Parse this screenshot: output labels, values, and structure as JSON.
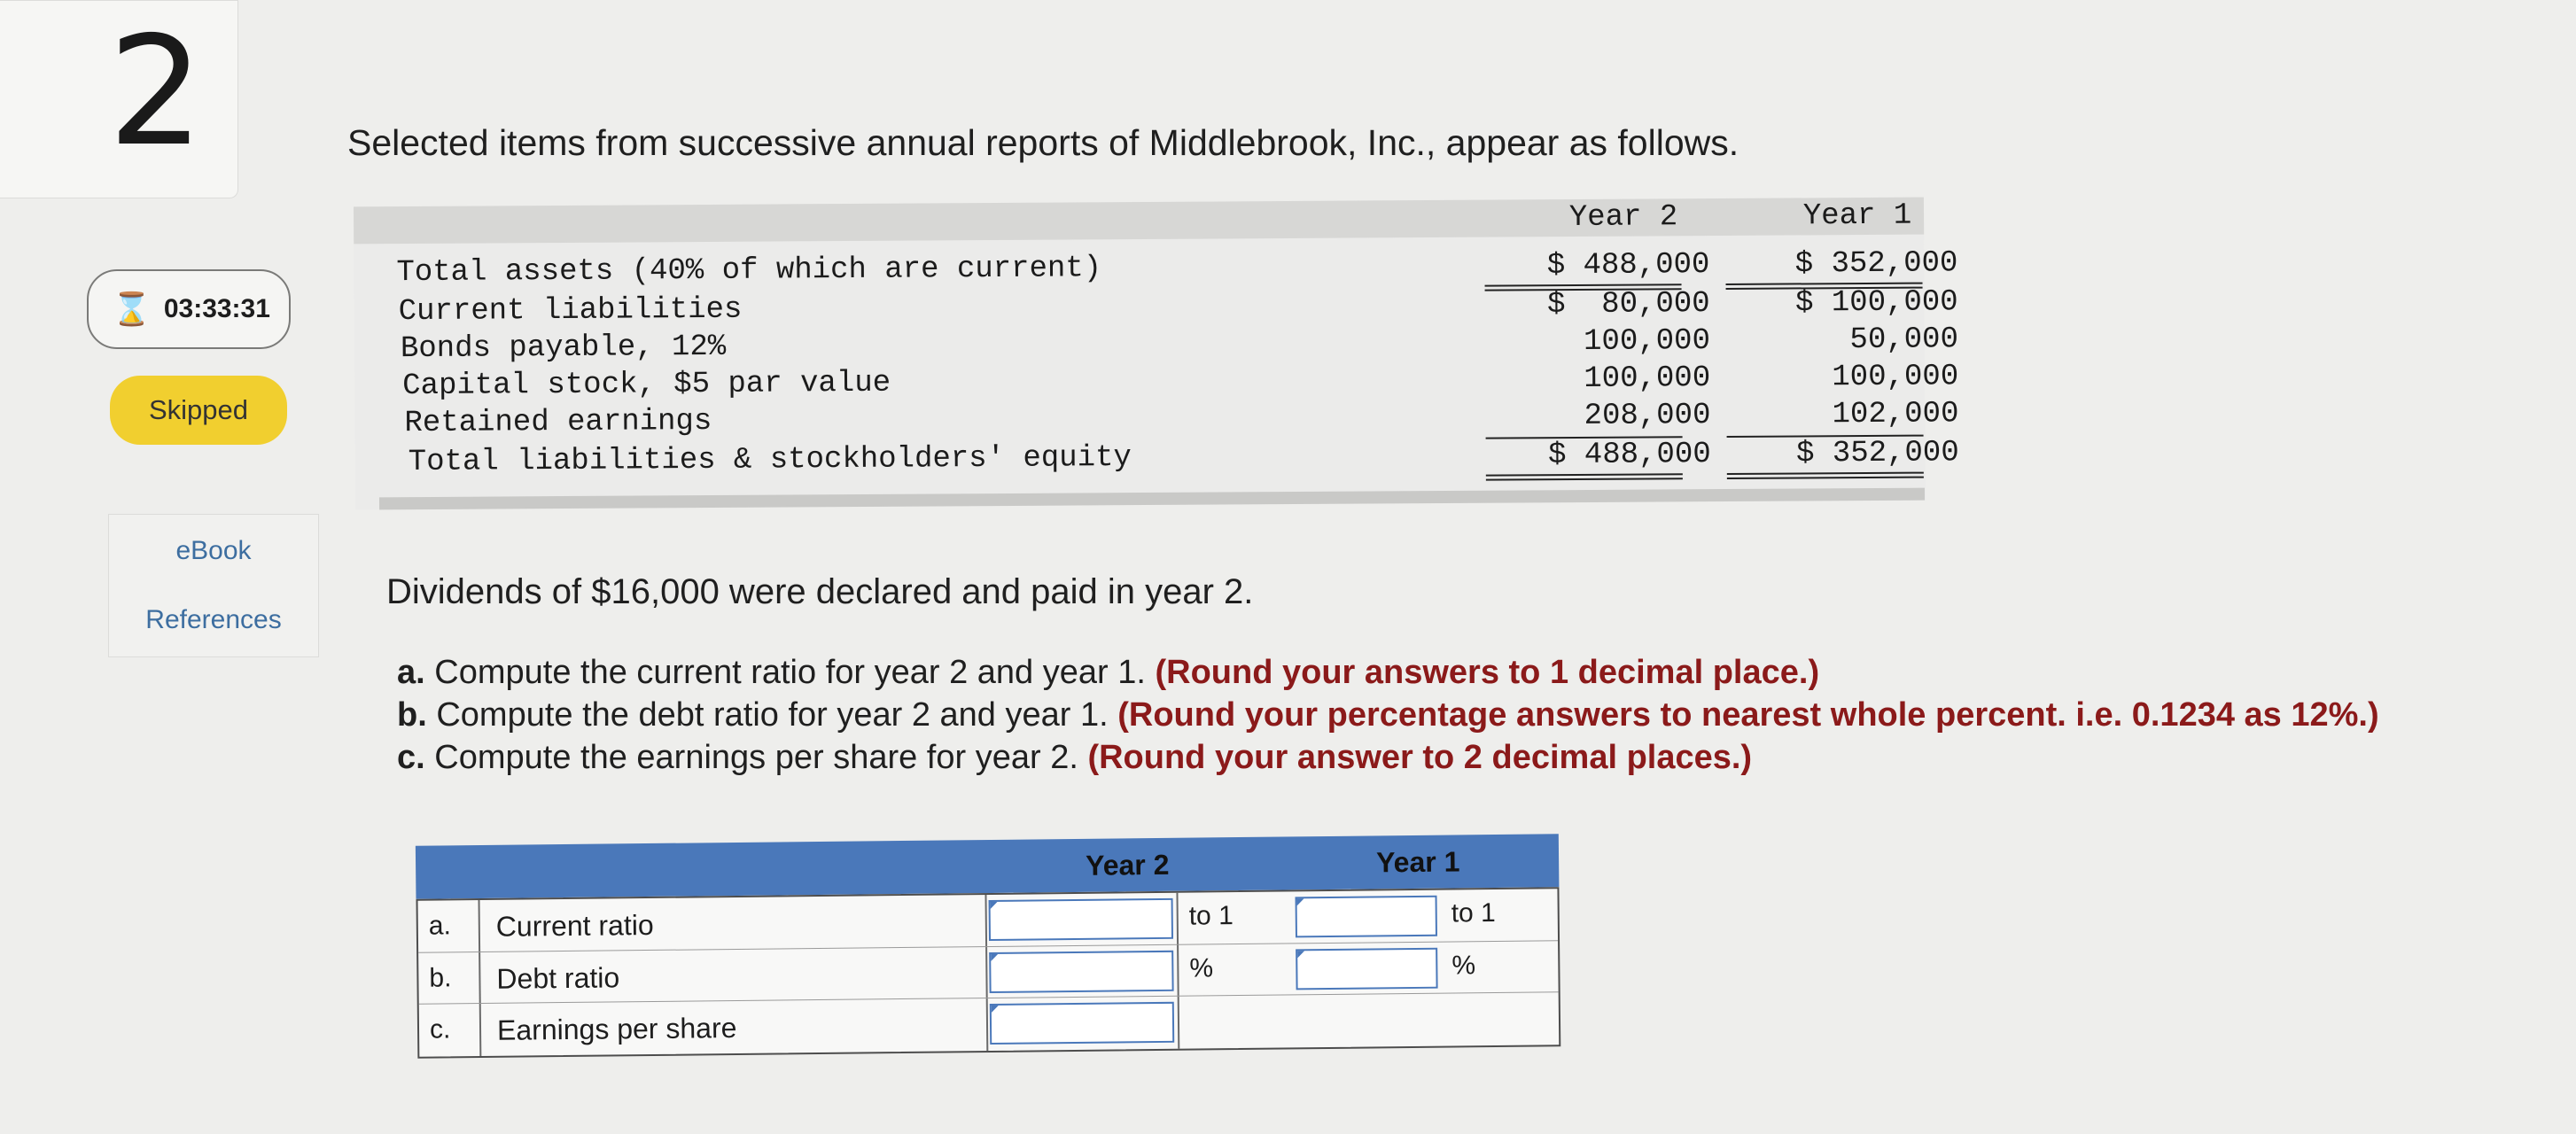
{
  "sidebar": {
    "question_number": "2",
    "timer": "03:33:31",
    "status": "Skipped",
    "links": [
      "eBook",
      "References"
    ]
  },
  "prompt": "Selected items from successive annual reports of Middlebrook, Inc., appear as follows.",
  "statement": {
    "col_year2": "Year 2",
    "col_year1": "Year 1",
    "rows": [
      {
        "label": "Total assets (40% of which are current)",
        "y2": "$ 488,000",
        "y1": "$ 352,000"
      },
      {
        "label": "Current liabilities",
        "y2": "$  80,000",
        "y1": "$ 100,000"
      },
      {
        "label": "Bonds payable, 12%",
        "y2": "100,000",
        "y1": "50,000"
      },
      {
        "label": "Capital stock, $5 par value",
        "y2": "100,000",
        "y1": "100,000"
      },
      {
        "label": "Retained earnings",
        "y2": "208,000",
        "y1": "102,000"
      },
      {
        "label": "Total liabilities & stockholders' equity",
        "y2": "$ 488,000",
        "y1": "$ 352,000"
      }
    ]
  },
  "dividends": "Dividends of $16,000 were declared and paid in year 2.",
  "instructions": [
    {
      "letter": "a.",
      "text": " Compute the current ratio for year 2 and year 1. ",
      "req": "(Round your answers to 1 decimal place.)"
    },
    {
      "letter": "b.",
      "text": " Compute the debt ratio for year 2 and year 1. ",
      "req": "(Round your percentage answers to nearest whole percent. i.e. 0.1234 as 12%.)"
    },
    {
      "letter": "c.",
      "text": " Compute the earnings per share for year 2. ",
      "req": "(Round your answer to 2 decimal places.)"
    }
  ],
  "answer_table": {
    "col_year2": "Year 2",
    "col_year1": "Year 1",
    "rows": [
      {
        "letter": "a.",
        "label": "Current ratio",
        "suffix": "to 1"
      },
      {
        "letter": "b.",
        "label": "Debt ratio",
        "suffix": "%"
      },
      {
        "letter": "c.",
        "label": "Earnings per share",
        "suffix": ""
      }
    ]
  }
}
